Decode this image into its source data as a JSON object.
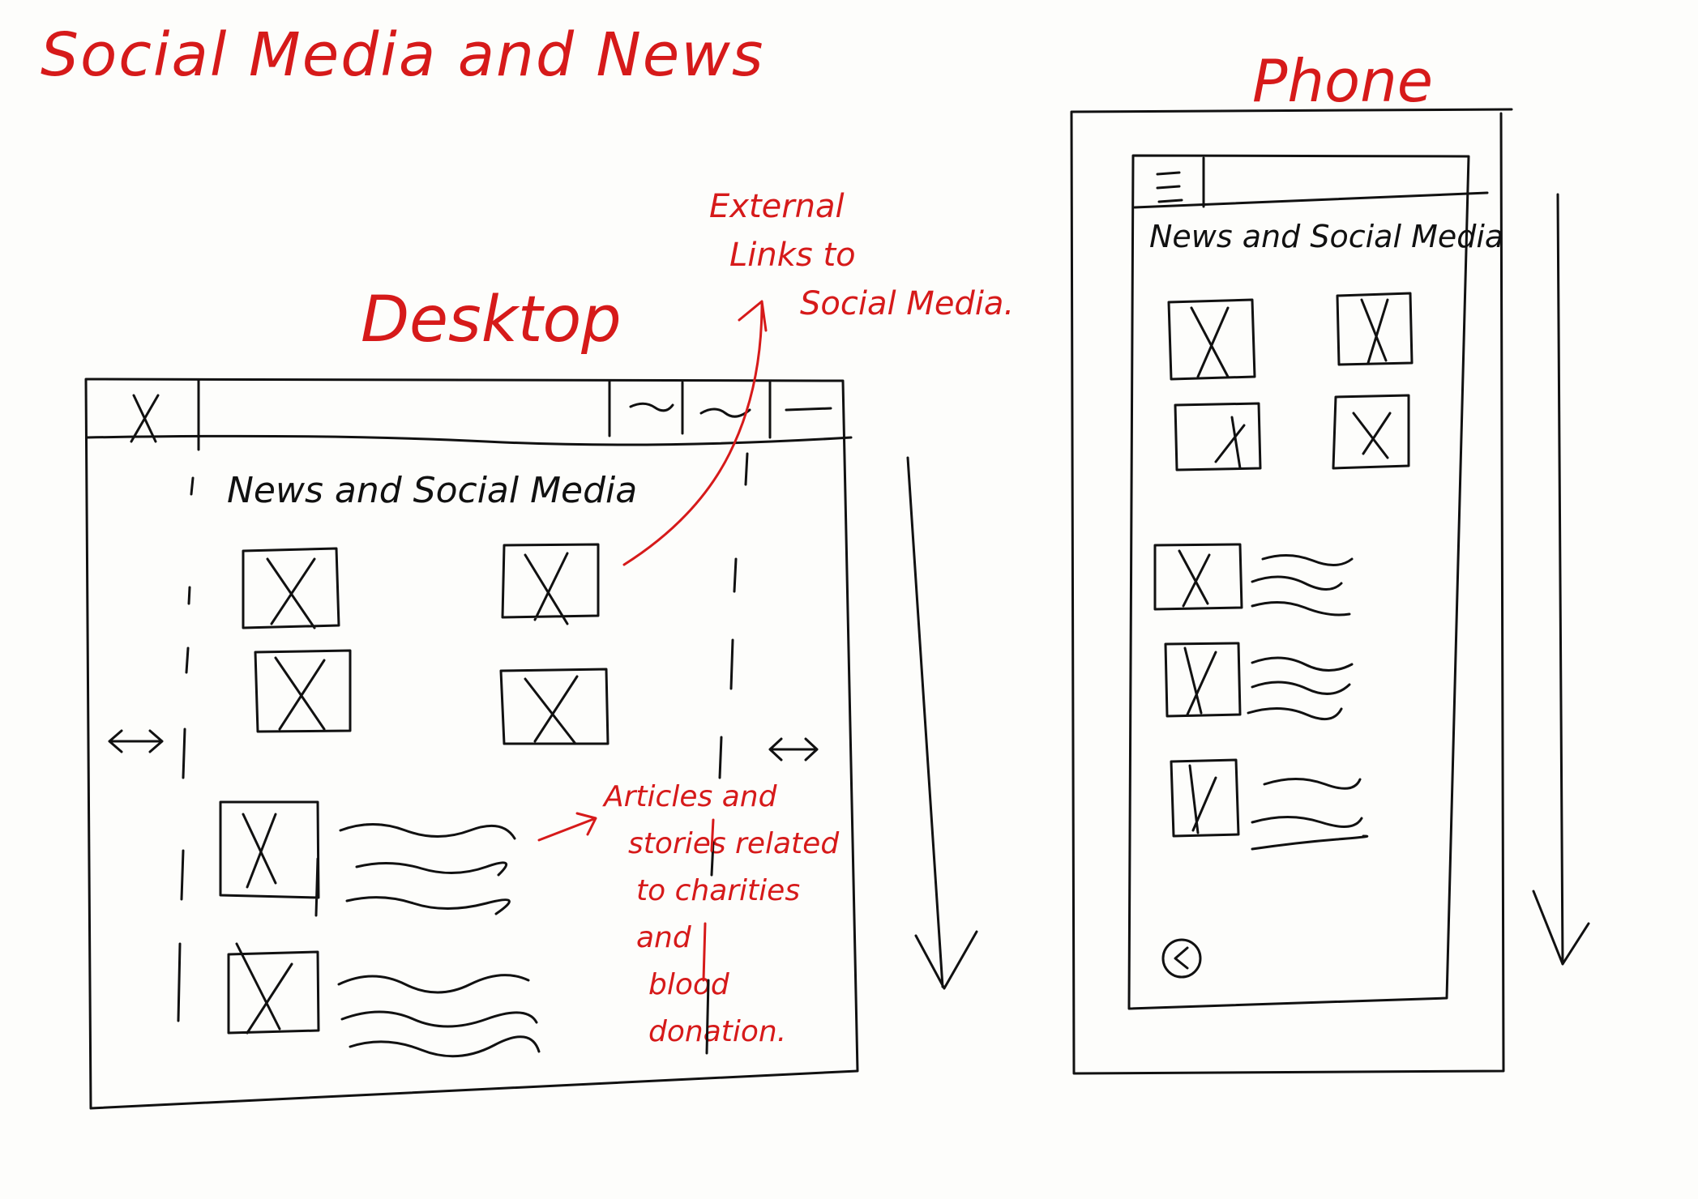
{
  "title": "Social Media and News",
  "desktop": {
    "label": "Desktop",
    "close_glyph": "X",
    "nav_glyphs": [
      "~",
      "~",
      "—"
    ],
    "heading": "News and Social Media",
    "scroll_arrow_glyph": "↓",
    "side_arrow_glyph": "↔"
  },
  "phone": {
    "label": "Phone",
    "menu_glyph": "☰",
    "heading": "News and Social Media",
    "back_glyph": "<"
  },
  "annotations": {
    "external_links": [
      "External",
      "Links to",
      "Social Media."
    ],
    "articles": [
      "Articles and",
      "stories related",
      "to charities and",
      "blood donation."
    ]
  },
  "colors": {
    "ink": "#111111",
    "accent": "#d61a1a",
    "paper": "#fdfdfb"
  }
}
